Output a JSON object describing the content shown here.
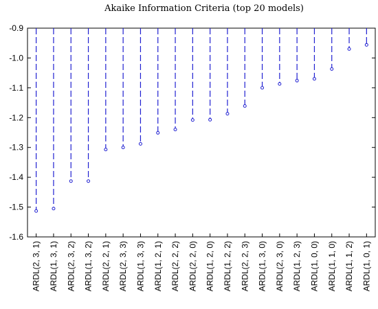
{
  "chart_data": {
    "type": "scatter",
    "title": "Akaike Information Criteria (top 20 models)",
    "xlabel": "",
    "ylabel": "",
    "baseline": -0.9,
    "ylim": [
      -1.6,
      -0.9
    ],
    "yticks": [
      -0.9,
      -1.0,
      -1.1,
      -1.2,
      -1.3,
      -1.4,
      -1.5,
      -1.6
    ],
    "ytick_labels": [
      "-0.9",
      "-1.0",
      "-1.1",
      "-1.2",
      "-1.3",
      "-1.4",
      "-1.5",
      "-1.6"
    ],
    "categories": [
      "ARDL(2, 3, 1)",
      "ARDL(1, 3, 1)",
      "ARDL(2, 3, 2)",
      "ARDL(1, 3, 2)",
      "ARDL(2, 2, 1)",
      "ARDL(2, 3, 3)",
      "ARDL(1, 3, 3)",
      "ARDL(1, 2, 1)",
      "ARDL(2, 2, 2)",
      "ARDL(2, 2, 0)",
      "ARDL(1, 2, 0)",
      "ARDL(1, 2, 2)",
      "ARDL(2, 2, 3)",
      "ARDL(1, 3, 0)",
      "ARDL(2, 3, 0)",
      "ARDL(1, 2, 3)",
      "ARDL(1, 0, 0)",
      "ARDL(1, 1, 0)",
      "ARDL(1, 1, 2)",
      "ARDL(1, 0, 1)"
    ],
    "values": [
      -1.513,
      -1.505,
      -1.413,
      -1.413,
      -1.307,
      -1.3,
      -1.288,
      -1.251,
      -1.24,
      -1.208,
      -1.207,
      -1.187,
      -1.161,
      -1.1,
      -1.087,
      -1.076,
      -1.07,
      -1.037,
      -0.97,
      -0.956
    ],
    "grid": false,
    "legend": "none",
    "colors": {
      "stem": "#1f1fd1",
      "marker": "#1f1fd1",
      "axis": "#000000"
    }
  }
}
